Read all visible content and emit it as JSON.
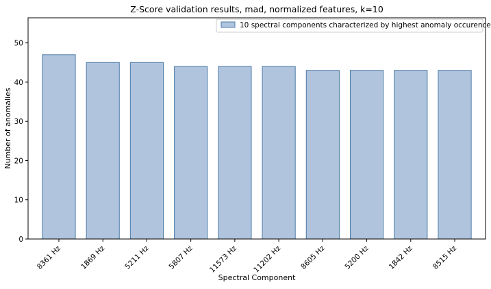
{
  "chart_data": {
    "type": "bar",
    "title": "Z-Score validation results, mad, normalized features, k=10",
    "xlabel": "Spectral Component",
    "ylabel": "Number of anomalies",
    "categories": [
      "8361 Hz",
      "1869 Hz",
      "5211 Hz",
      "5807 Hz",
      "11573 Hz",
      "11202 Hz",
      "8605 Hz",
      "5200 Hz",
      "1842 Hz",
      "8515 Hz"
    ],
    "series": [
      {
        "name": "10 spectral components characterized by highest anomaly occurence.",
        "values": [
          47,
          45,
          45,
          44,
          44,
          44,
          43,
          43,
          43,
          43
        ]
      }
    ],
    "ylim": [
      0,
      56.4
    ],
    "yticks": [
      0,
      10,
      20,
      30,
      40,
      50
    ],
    "grid": false,
    "legend_position": "top-right",
    "colors": {
      "bar_fill": "#b0c4de",
      "bar_edge": "#4a7ba6"
    }
  }
}
